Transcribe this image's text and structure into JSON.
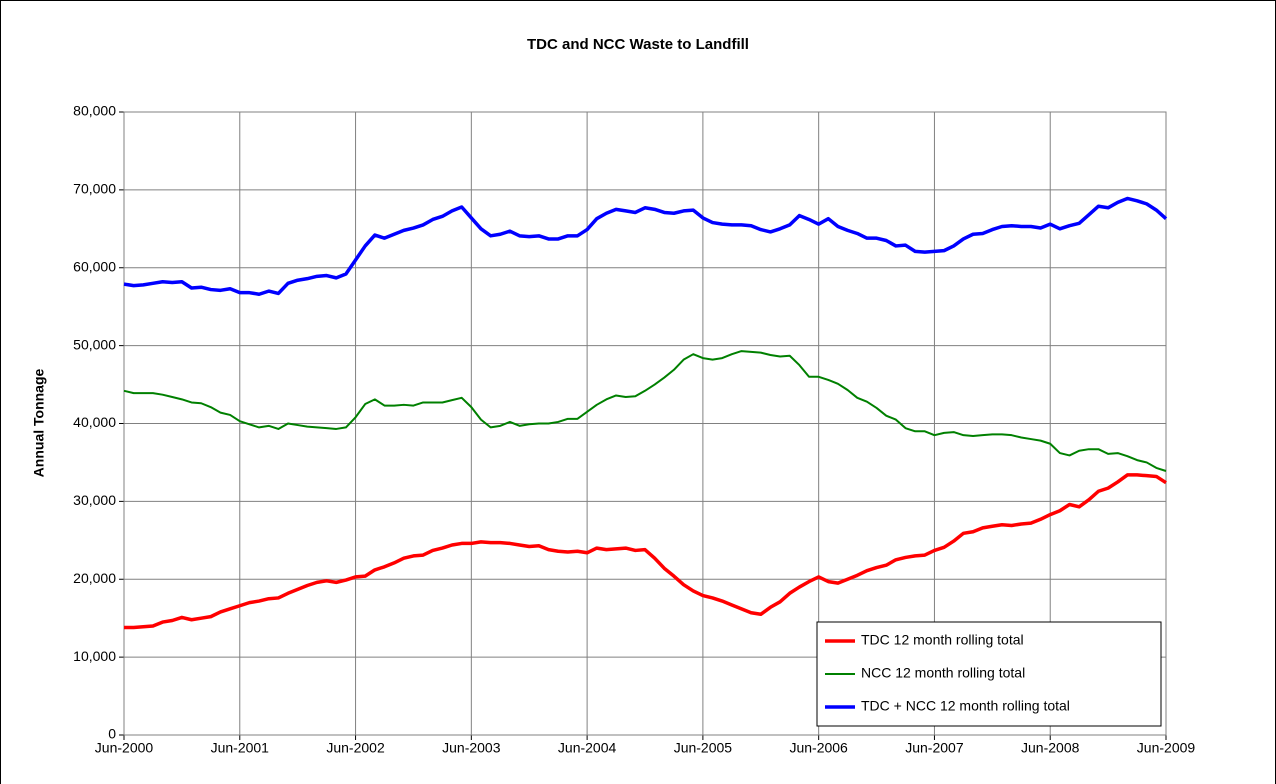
{
  "chart_data": {
    "type": "line",
    "title": "TDC and NCC Waste to Landfill",
    "y_label": "Annual Tonnage",
    "categories": [
      "Jun-2000",
      null,
      null,
      null,
      null,
      null,
      null,
      null,
      null,
      null,
      null,
      null,
      "Jun-2001",
      null,
      null,
      null,
      null,
      null,
      null,
      null,
      null,
      null,
      null,
      null,
      "Jun-2002",
      null,
      null,
      null,
      null,
      null,
      null,
      null,
      null,
      null,
      null,
      null,
      "Jun-2003",
      null,
      null,
      null,
      null,
      null,
      null,
      null,
      null,
      null,
      null,
      null,
      "Jun-2004",
      null,
      null,
      null,
      null,
      null,
      null,
      null,
      null,
      null,
      null,
      null,
      "Jun-2005",
      null,
      null,
      null,
      null,
      null,
      null,
      null,
      null,
      null,
      null,
      null,
      "Jun-2006",
      null,
      null,
      null,
      null,
      null,
      null,
      null,
      null,
      null,
      null,
      null,
      "Jun-2007",
      null,
      null,
      null,
      null,
      null,
      null,
      null,
      null,
      null,
      null,
      null,
      "Jun-2008",
      null,
      null,
      null,
      null,
      null,
      null,
      null,
      null,
      null,
      null,
      null,
      "Jun-2009"
    ],
    "series": [
      {
        "name": "TDC 12 month rolling total",
        "color": "#ff0000",
        "values": [
          13800,
          13800,
          13900,
          14000,
          14500,
          14700,
          15100,
          14800,
          15000,
          15200,
          15800,
          16200,
          16600,
          17000,
          17200,
          17500,
          17600,
          18200,
          18700,
          19200,
          19600,
          19800,
          19600,
          19900,
          20300,
          20400,
          21200,
          21600,
          22100,
          22700,
          23000,
          23100,
          23700,
          24000,
          24400,
          24600,
          24600,
          24800,
          24700,
          24700,
          24600,
          24400,
          24200,
          24300,
          23800,
          23600,
          23500,
          23600,
          23400,
          24000,
          23800,
          23900,
          24000,
          23700,
          23800,
          22700,
          21400,
          20400,
          19300,
          18500,
          17900,
          17600,
          17200,
          16700,
          16200,
          15700,
          15500,
          16400,
          17100,
          18200,
          19000,
          19700,
          20300,
          19700,
          19500,
          20000,
          20500,
          21100,
          21500,
          21800,
          22500,
          22800,
          23000,
          23100,
          23700,
          24100,
          24900,
          25900,
          26100,
          26600,
          26800,
          27000,
          26900,
          27100,
          27200,
          27700,
          28300,
          28800,
          29600,
          29300,
          30200,
          31300,
          31700,
          32500,
          33400,
          33400,
          33300,
          33200,
          32400
        ]
      },
      {
        "name": "NCC 12 month rolling total",
        "color": "#008000",
        "values": [
          44200,
          43900,
          43900,
          43900,
          43700,
          43400,
          43100,
          42700,
          42600,
          42100,
          41400,
          41100,
          40300,
          39900,
          39500,
          39700,
          39300,
          40000,
          39800,
          39600,
          39500,
          39400,
          39300,
          39500,
          40800,
          42500,
          43100,
          42300,
          42300,
          42400,
          42300,
          42700,
          42700,
          42700,
          43000,
          43300,
          42100,
          40500,
          39500,
          39700,
          40200,
          39700,
          39900,
          40000,
          40000,
          40200,
          40600,
          40600,
          41500,
          42400,
          43100,
          43600,
          43400,
          43500,
          44200,
          45000,
          45900,
          46900,
          48200,
          48900,
          48400,
          48200,
          48400,
          48900,
          49300,
          49200,
          49100,
          48800,
          48600,
          48700,
          47500,
          46000,
          46000,
          45600,
          45100,
          44300,
          43300,
          42800,
          42000,
          41000,
          40500,
          39400,
          39000,
          39000,
          38500,
          38800,
          38900,
          38500,
          38400,
          38500,
          38600,
          38600,
          38500,
          38200,
          38000,
          37800,
          37400,
          36200,
          35900,
          36500,
          36700,
          36700,
          36100,
          36200,
          35800,
          35300,
          35000,
          34300,
          33900
        ]
      },
      {
        "name": "TDC + NCC 12 month rolling total",
        "color": "#0000ff",
        "values": [
          57900,
          57700,
          57800,
          58000,
          58200,
          58100,
          58200,
          57400,
          57500,
          57200,
          57100,
          57300,
          56800,
          56800,
          56600,
          57000,
          56700,
          58000,
          58400,
          58600,
          58900,
          59000,
          58700,
          59200,
          61000,
          62800,
          64200,
          63800,
          64300,
          64800,
          65100,
          65500,
          66200,
          66600,
          67300,
          67800,
          66400,
          65000,
          64100,
          64300,
          64700,
          64100,
          64000,
          64100,
          63700,
          63700,
          64100,
          64100,
          64900,
          66300,
          67000,
          67500,
          67300,
          67100,
          67700,
          67500,
          67100,
          67000,
          67300,
          67400,
          66400,
          65800,
          65600,
          65500,
          65500,
          65400,
          64900,
          64600,
          65000,
          65500,
          66700,
          66200,
          65600,
          66300,
          65300,
          64800,
          64400,
          63800,
          63800,
          63500,
          62800,
          62900,
          62100,
          62000,
          62100,
          62200,
          62800,
          63700,
          64300,
          64400,
          64900,
          65300,
          65400,
          65300,
          65300,
          65100,
          65600,
          65000,
          65400,
          65700,
          66800,
          67900,
          67700,
          68400,
          68900,
          68600,
          68200,
          67400,
          66300
        ]
      }
    ],
    "ylim": [
      0,
      80000
    ],
    "yticks": [
      0,
      {
        "value": 10000,
        "label": "10,000"
      },
      {
        "value": 20000,
        "label": "20,000"
      },
      {
        "value": 30000,
        "label": "30,000"
      },
      {
        "value": 40000,
        "label": "40,000"
      },
      {
        "value": 50000,
        "label": "50,000"
      },
      {
        "value": 60000,
        "label": "60,000"
      },
      {
        "value": 70000,
        "label": "70,000"
      },
      {
        "value": 80000,
        "label": "80,000"
      }
    ],
    "grid": true,
    "legend": "lower right"
  }
}
